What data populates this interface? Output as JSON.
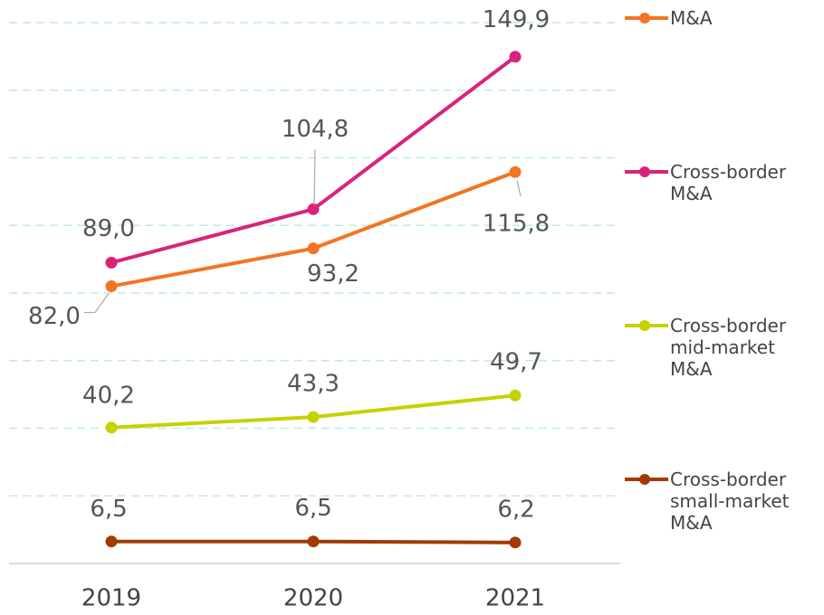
{
  "chart_data": {
    "type": "line",
    "categories": [
      "2019",
      "2020",
      "2021"
    ],
    "series": [
      {
        "name": "M&A",
        "color": "#f47421",
        "values": [
          82.0,
          93.2,
          115.8
        ],
        "value_labels": [
          "82,0",
          "93,2",
          "115,8"
        ]
      },
      {
        "name": "Cross-border M&A",
        "color": "#d9237b",
        "values": [
          89.0,
          104.8,
          149.9
        ],
        "value_labels": [
          "89,0",
          "104,8",
          "149,9"
        ]
      },
      {
        "name": "Cross-border mid-market M&A",
        "color": "#c5d200",
        "values": [
          40.2,
          43.3,
          49.7
        ],
        "value_labels": [
          "40,2",
          "43,3",
          "49,7"
        ]
      },
      {
        "name": "Cross-border small-market M&A",
        "color": "#a33b00",
        "values": [
          6.5,
          6.5,
          6.2
        ],
        "value_labels": [
          "6,5",
          "6,5",
          "6,2"
        ]
      }
    ],
    "ylim": [
      0,
      160
    ],
    "yticks": [
      0,
      20,
      40,
      60,
      80,
      100,
      120,
      140,
      160
    ],
    "grid": true
  }
}
